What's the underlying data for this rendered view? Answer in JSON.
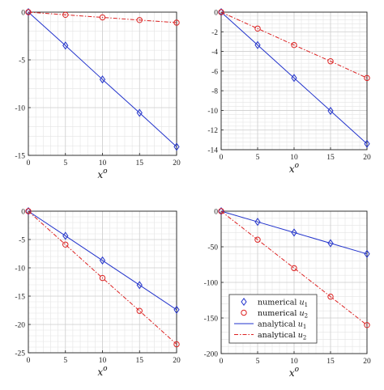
{
  "chart_data": [
    {
      "type": "line",
      "xlabel": "x",
      "xlabel_sup": "o",
      "xlim": [
        0,
        20
      ],
      "ylim": [
        -15,
        0
      ],
      "xticks": [
        0,
        5,
        10,
        15,
        20
      ],
      "yticks": [
        0,
        -5,
        -10,
        -15
      ],
      "grid": true,
      "x": [
        0,
        5,
        10,
        15,
        20
      ],
      "series": [
        {
          "values": [
            0,
            -3.5,
            -7.05,
            -10.55,
            -14.1
          ],
          "color": "#2233cc",
          "line": "solid",
          "marker": "diamond"
        },
        {
          "values": [
            0,
            -0.28,
            -0.55,
            -0.83,
            -1.1
          ],
          "color": "#dd2222",
          "line": "dashdot",
          "marker": "circle"
        }
      ]
    },
    {
      "type": "line",
      "xlabel": "x",
      "xlabel_sup": "o",
      "xlim": [
        0,
        20
      ],
      "ylim": [
        -14,
        0
      ],
      "xticks": [
        0,
        5,
        10,
        15,
        20
      ],
      "yticks": [
        0,
        -2,
        -4,
        -6,
        -8,
        -10,
        -12,
        -14
      ],
      "grid": true,
      "x": [
        0,
        5,
        10,
        15,
        20
      ],
      "series": [
        {
          "values": [
            0,
            -3.35,
            -6.7,
            -10.05,
            -13.4
          ],
          "color": "#2233cc",
          "line": "solid",
          "marker": "diamond"
        },
        {
          "values": [
            0,
            -1.67,
            -3.35,
            -5.0,
            -6.7
          ],
          "color": "#dd2222",
          "line": "dashdot",
          "marker": "circle"
        }
      ]
    },
    {
      "type": "line",
      "xlabel": "x",
      "xlabel_sup": "o",
      "xlim": [
        0,
        20
      ],
      "ylim": [
        -25,
        0
      ],
      "xticks": [
        0,
        5,
        10,
        15,
        20
      ],
      "yticks": [
        0,
        -5,
        -10,
        -15,
        -20,
        -25
      ],
      "grid": true,
      "x": [
        0,
        5,
        10,
        15,
        20
      ],
      "series": [
        {
          "values": [
            0,
            -4.35,
            -8.7,
            -13.05,
            -17.4
          ],
          "color": "#2233cc",
          "line": "solid",
          "marker": "diamond"
        },
        {
          "values": [
            0,
            -5.9,
            -11.8,
            -17.6,
            -23.5
          ],
          "color": "#dd2222",
          "line": "dashdot",
          "marker": "circle"
        }
      ]
    },
    {
      "type": "line",
      "xlabel": "x",
      "xlabel_sup": "o",
      "xlim": [
        0,
        20
      ],
      "ylim": [
        -200,
        0
      ],
      "xticks": [
        0,
        5,
        10,
        15,
        20
      ],
      "yticks": [
        0,
        -50,
        -100,
        -150,
        -200
      ],
      "grid": true,
      "x": [
        0,
        5,
        10,
        15,
        20
      ],
      "series": [
        {
          "values": [
            0,
            -15,
            -30,
            -45,
            -60
          ],
          "color": "#2233cc",
          "line": "solid",
          "marker": "diamond"
        },
        {
          "values": [
            0,
            -40,
            -80,
            -120,
            -160
          ],
          "color": "#dd2222",
          "line": "dashdot",
          "marker": "circle"
        }
      ],
      "legend": {
        "placement": "lower-left",
        "entries": [
          {
            "text": "numerical ",
            "var": "u",
            "sub": "1",
            "color": "#2233cc",
            "kind": "marker",
            "marker": "diamond"
          },
          {
            "text": "numerical ",
            "var": "u",
            "sub": "2",
            "color": "#dd2222",
            "kind": "marker",
            "marker": "circle"
          },
          {
            "text": "analytical ",
            "var": "u",
            "sub": "1",
            "color": "#2233cc",
            "kind": "line",
            "line": "solid"
          },
          {
            "text": "analytical ",
            "var": "u",
            "sub": "2",
            "color": "#dd2222",
            "kind": "line",
            "line": "dashdot"
          }
        ]
      }
    }
  ]
}
